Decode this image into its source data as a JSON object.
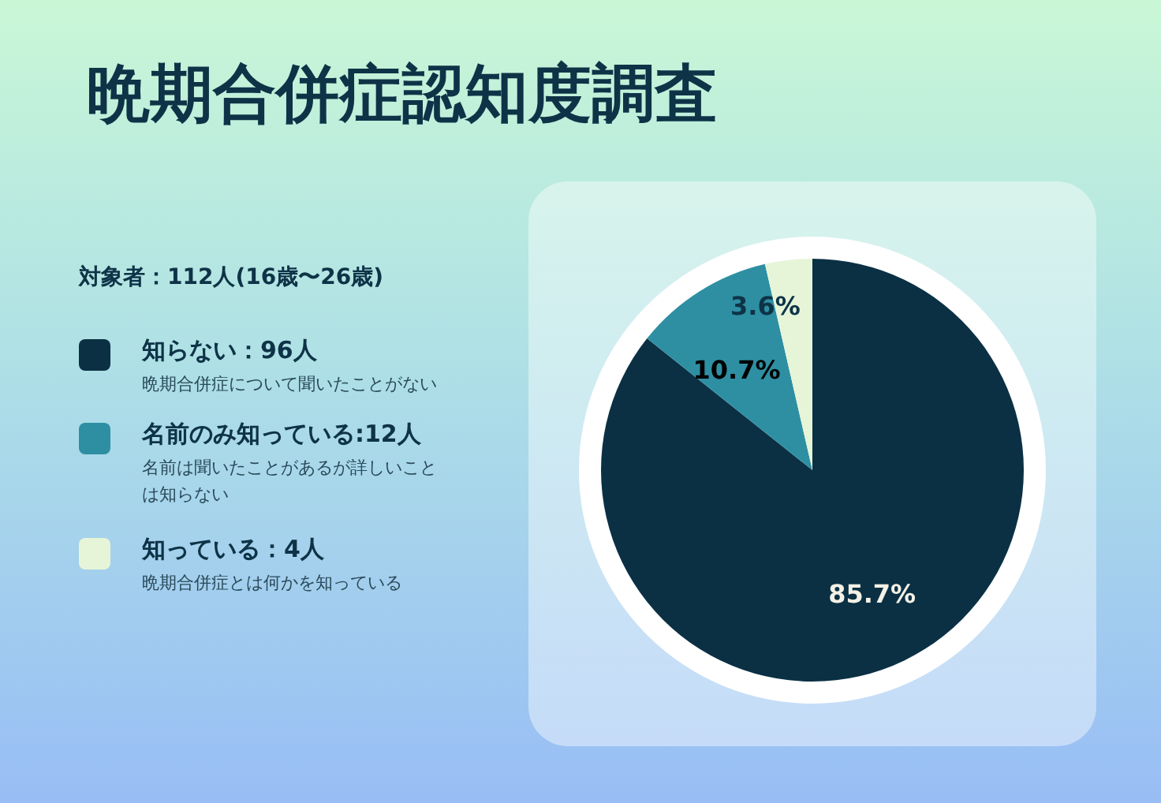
{
  "chart_data": {
    "type": "pie",
    "title": "晩期合併症認知度調査",
    "subtitle": "対象者：112人(16歳〜26歳)",
    "categories": [
      "知らない：96人",
      "名前のみ知っている:12人",
      "知っている：4人"
    ],
    "values": [
      85.7,
      10.7,
      3.6
    ],
    "colors": [
      "#0b3044",
      "#2e8fa3",
      "#e6f5d8"
    ],
    "value_labels": [
      "85.7%",
      "10.7%",
      "3.6%"
    ],
    "annotations": [
      "晩期合併症について聞いたことがない",
      "名前は聞いたことがあるが詳しいことは知らない",
      "晩期合併症とは何かを知っている"
    ],
    "legend": "left"
  }
}
